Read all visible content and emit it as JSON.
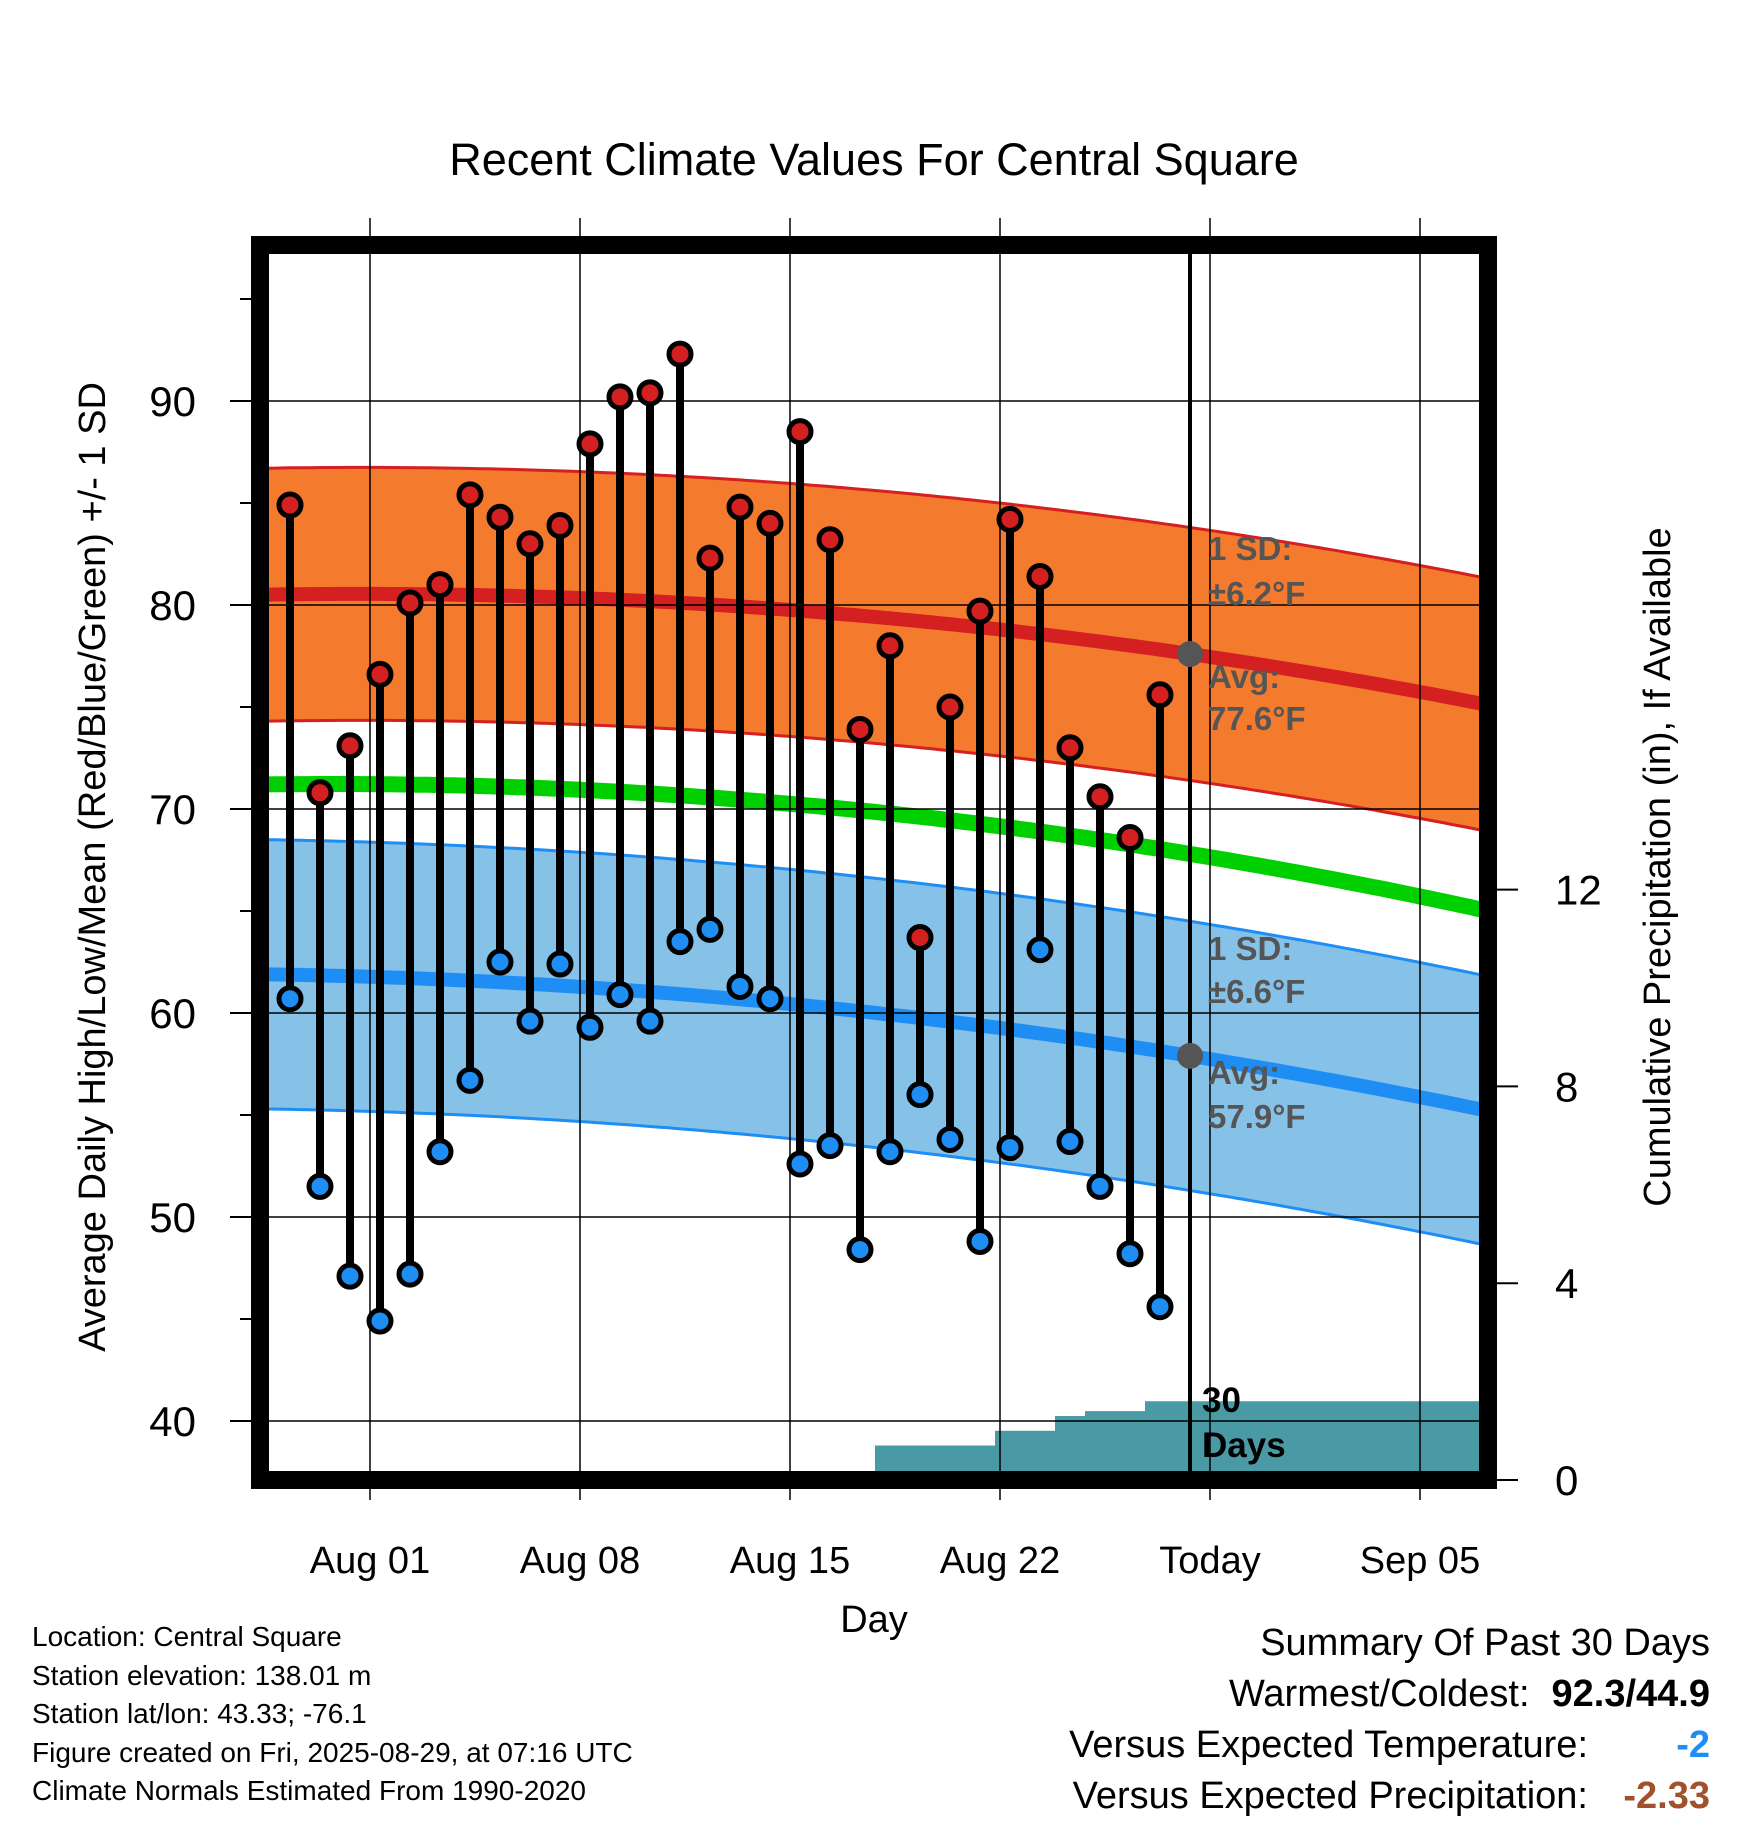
{
  "chart_data": {
    "type": "line",
    "title": "Recent Climate Values For Central Square",
    "xlabel": "Day",
    "ylabel_left": "Average Daily High/Low/Mean (Red/Blue/Green) +/- 1 SD",
    "ylabel_right": "Cumulative Precipitation (in), If Available",
    "ylim_left": [
      37,
      97
    ],
    "ylim_right": [
      0,
      20
    ],
    "left_ticks": [
      "40",
      "50",
      "60",
      "70",
      "80",
      "90"
    ],
    "right_ticks": [
      "0",
      "4",
      "8",
      "12"
    ],
    "x_ticks": [
      "Aug 01",
      "Aug 08",
      "Aug 15",
      "Aug 22",
      "Today",
      "Sep 05"
    ],
    "today_label": "Today",
    "days": [
      "Jul 30",
      "Jul 31",
      "Aug 01",
      "Aug 02",
      "Aug 03",
      "Aug 04",
      "Aug 05",
      "Aug 06",
      "Aug 07",
      "Aug 08",
      "Aug 09",
      "Aug 10",
      "Aug 11",
      "Aug 12",
      "Aug 13",
      "Aug 14",
      "Aug 15",
      "Aug 16",
      "Aug 17",
      "Aug 18",
      "Aug 19",
      "Aug 20",
      "Aug 21",
      "Aug 22",
      "Aug 23",
      "Aug 24",
      "Aug 25",
      "Aug 26",
      "Aug 27",
      "Aug 28"
    ],
    "series": [
      {
        "name": "High",
        "color": "#d42020",
        "values": [
          84.9,
          70.8,
          73.1,
          76.6,
          80.1,
          81.0,
          85.4,
          84.3,
          83.0,
          83.9,
          87.9,
          90.2,
          90.4,
          92.3,
          82.3,
          84.8,
          84.0,
          88.5,
          83.2,
          73.9,
          78.0,
          63.7,
          75.0,
          79.7,
          84.2,
          81.4,
          73.0,
          70.6,
          68.6,
          75.6
        ]
      },
      {
        "name": "Low",
        "color": "#1e8ef5",
        "values": [
          60.7,
          51.5,
          47.1,
          44.9,
          47.2,
          53.2,
          56.7,
          62.5,
          59.6,
          62.4,
          59.3,
          60.9,
          59.6,
          63.5,
          64.1,
          61.3,
          60.7,
          52.6,
          53.5,
          48.4,
          53.2,
          56.0,
          53.8,
          48.8,
          53.4,
          63.1,
          53.7,
          51.5,
          48.2,
          45.6
        ]
      }
    ],
    "normal_high": {
      "color": "#d42020",
      "band_color": "#f47a2e",
      "avg_day0": 80.5,
      "avg_today": 77.6,
      "avg_end": 75.1,
      "sd": 6.2
    },
    "normal_low": {
      "color": "#1e8ef5",
      "band_color": "#86c1e8",
      "avg_day0": 61.9,
      "avg_today": 57.9,
      "avg_end": 55.2,
      "sd": 6.6
    },
    "normal_mean": {
      "color": "#00d000",
      "day0": 71.2,
      "today": 67.8,
      "end": 65.0
    },
    "precip": {
      "color": "#4a9aa5",
      "cumulative": [
        0,
        0,
        0,
        0,
        0,
        0,
        0,
        0,
        0,
        0,
        0,
        0,
        0,
        0,
        0,
        0,
        0,
        0,
        0,
        0,
        0.7,
        0.7,
        0.7,
        0.7,
        1.0,
        1.0,
        1.3,
        1.4,
        1.4,
        1.6
      ]
    },
    "annotations": {
      "high_sd_label": "1 SD:",
      "high_sd_value": "±6.2°F",
      "high_avg_label": "Avg:",
      "high_avg_value": "77.6°F",
      "low_sd_label": "1 SD:",
      "low_sd_value": "±6.6°F",
      "low_avg_label": "Avg:",
      "low_avg_value": "57.9°F",
      "days_count": "30",
      "days_word": "Days"
    }
  },
  "info": {
    "location": "Location: Central Square",
    "elevation": "Station elevation: 138.01 m",
    "latlon": "Station lat/lon: 43.33; -76.1",
    "created": "Figure created on Fri, 2025-08-29, at 07:16 UTC",
    "normals": "Climate Normals Estimated From 1990-2020"
  },
  "summary": {
    "title": "Summary Of Past 30 Days",
    "warmest_label": "Warmest/Coldest:",
    "warmest_value": "92.3/44.9",
    "temp_label": "Versus Expected Temperature:",
    "temp_value": "-2",
    "temp_color": "#1e8ef5",
    "precip_label": "Versus Expected Precipitation:",
    "precip_value": "-2.33",
    "precip_color": "#a0522d"
  }
}
